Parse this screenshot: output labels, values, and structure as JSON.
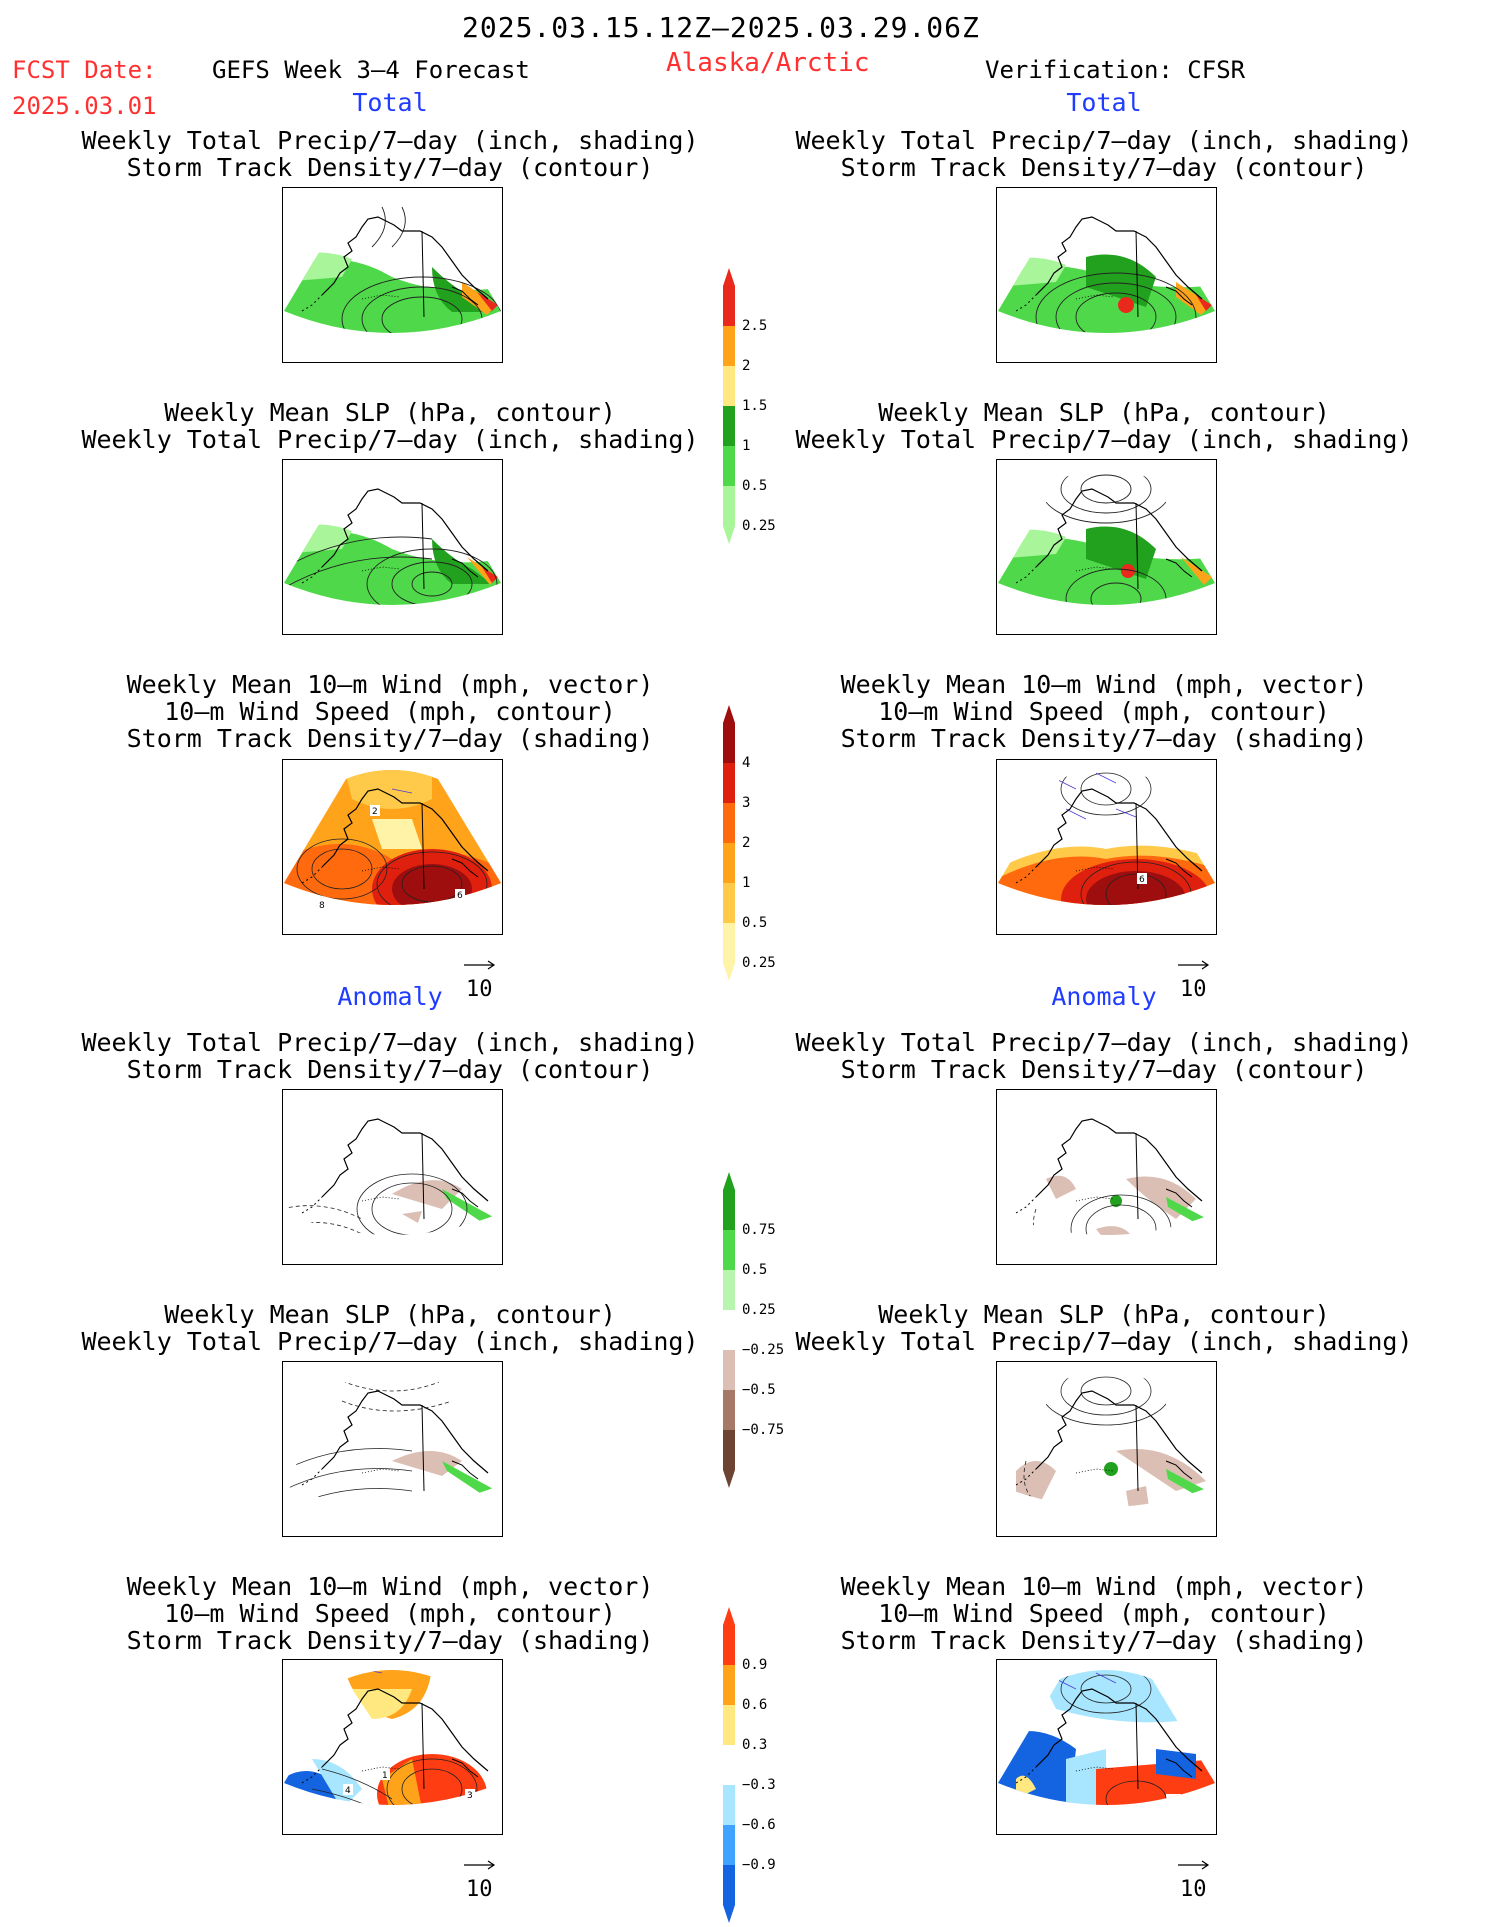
{
  "header": {
    "period": "2025.03.15.12Z–2025.03.29.06Z",
    "fcst_label": "FCST Date:",
    "fcst_date": "2025.03.01",
    "model": "GEFS Week 3–4 Forecast",
    "region": "Alaska/Arctic",
    "verification": "Verification: CFSR"
  },
  "sections": {
    "total": "Total",
    "anomaly": "Anomaly"
  },
  "titles": {
    "precip_std": [
      "Weekly Total Precip/7–day (inch, shading)",
      "Storm Track Density/7–day (contour)"
    ],
    "slp_precip": [
      "Weekly Mean SLP (hPa, contour)",
      "Weekly Total Precip/7–day (inch, shading)"
    ],
    "wind": [
      "Weekly Mean 10–m Wind (mph, vector)",
      "10–m Wind Speed (mph, contour)",
      "Storm Track Density/7–day (shading)"
    ]
  },
  "vector_ref": "10",
  "colorbars": {
    "precip_total": {
      "labels": [
        "2.5",
        "2",
        "1.5",
        "1",
        "0.5",
        "0.25"
      ],
      "colors": [
        "#e8291c",
        "#ffa31a",
        "#ffe880",
        "#22a11f",
        "#4fd94a",
        "#a8f59a"
      ]
    },
    "std_total": {
      "labels": [
        "4",
        "3",
        "2",
        "1",
        "0.5",
        "0.25"
      ],
      "colors": [
        "#9e0e0e",
        "#e0200f",
        "#ff6a0f",
        "#ffa31a",
        "#ffc94a",
        "#fff3a8"
      ]
    },
    "precip_anom": {
      "labels": [
        "0.75",
        "0.5",
        "0.25",
        "−0.25",
        "−0.5",
        "−0.75"
      ],
      "colors": [
        "#22a11f",
        "#4fd94a",
        "#b8f5ae",
        "#ffffff",
        "#dcbfb4",
        "#a57868",
        "#6d4434"
      ]
    },
    "std_anom": {
      "labels": [
        "0.9",
        "0.6",
        "0.3",
        "−0.3",
        "−0.6",
        "−0.9"
      ],
      "colors": [
        "#ff3d12",
        "#ffa31a",
        "#ffe880",
        "#ffffff",
        "#a8e6ff",
        "#3fa3ff",
        "#1463e0"
      ]
    }
  },
  "contour_labels": {
    "wind_total_fcst": [
      "2",
      "8",
      "6"
    ],
    "wind_total_obs": [
      "6"
    ],
    "wind_anom_fcst": [
      "4",
      "1",
      "3"
    ]
  }
}
